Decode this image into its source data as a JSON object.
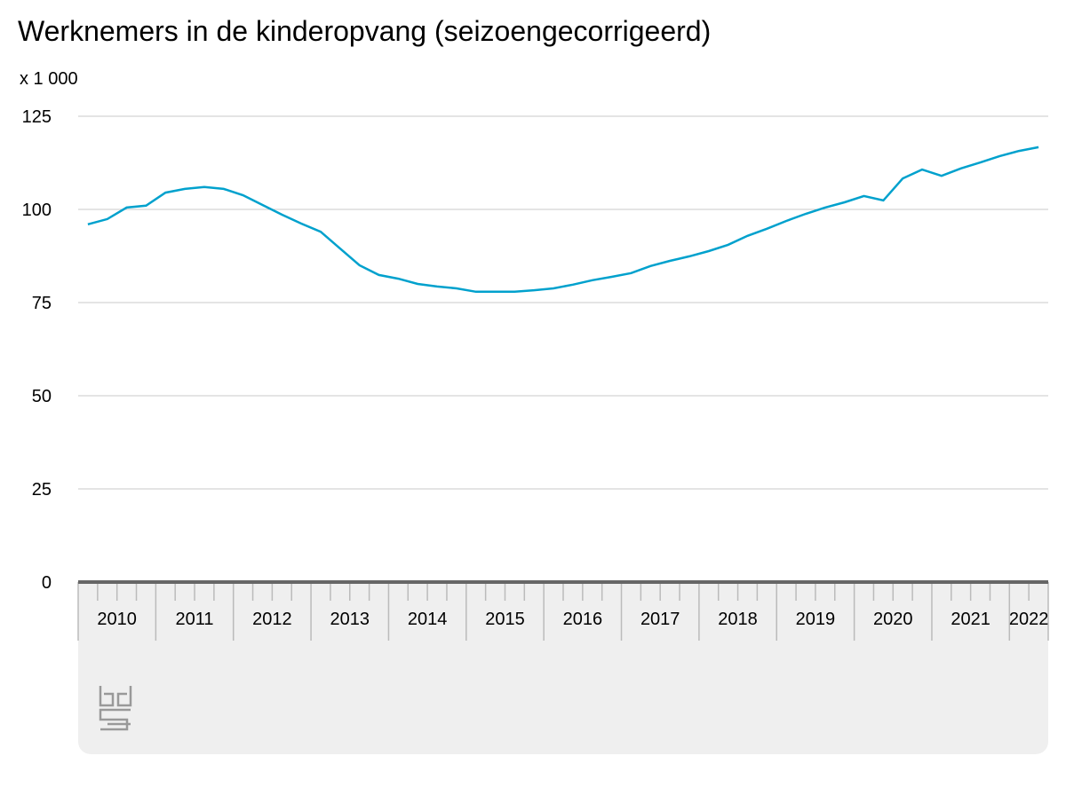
{
  "chart_data": {
    "type": "line",
    "title": "Werknemers in de kinderopvang (seizoengecorrigeerd)",
    "ylabel": "x 1 000",
    "x_axis_labels": [
      "2010",
      "2011",
      "2012",
      "2013",
      "2014",
      "2015",
      "2016",
      "2017",
      "2018",
      "2019",
      "2020",
      "2021",
      "2022"
    ],
    "periods_per_label": 4,
    "series": [
      {
        "color": "#00a1cd",
        "values": [
          96.0,
          97.4,
          100.5,
          101,
          104.5,
          105.5,
          106,
          105.5,
          103.8,
          101.2,
          98.6,
          96.2,
          94,
          89.5,
          85,
          82.4,
          81.4,
          80,
          79.3,
          78.8,
          77.9,
          77.9,
          77.9,
          78.3,
          78.8,
          79.8,
          81,
          81.9,
          82.9,
          84.8,
          86.2,
          87.4,
          88.8,
          90.5,
          92.9,
          94.8,
          96.9,
          98.8,
          100.5,
          101.9,
          103.6,
          102.4,
          108.3,
          110.7,
          109,
          111,
          112.6,
          114.3,
          115.7,
          116.7
        ]
      }
    ],
    "ylim": [
      0,
      125
    ],
    "yticks": [
      0,
      25,
      50,
      75,
      100,
      125
    ],
    "grid": true
  }
}
